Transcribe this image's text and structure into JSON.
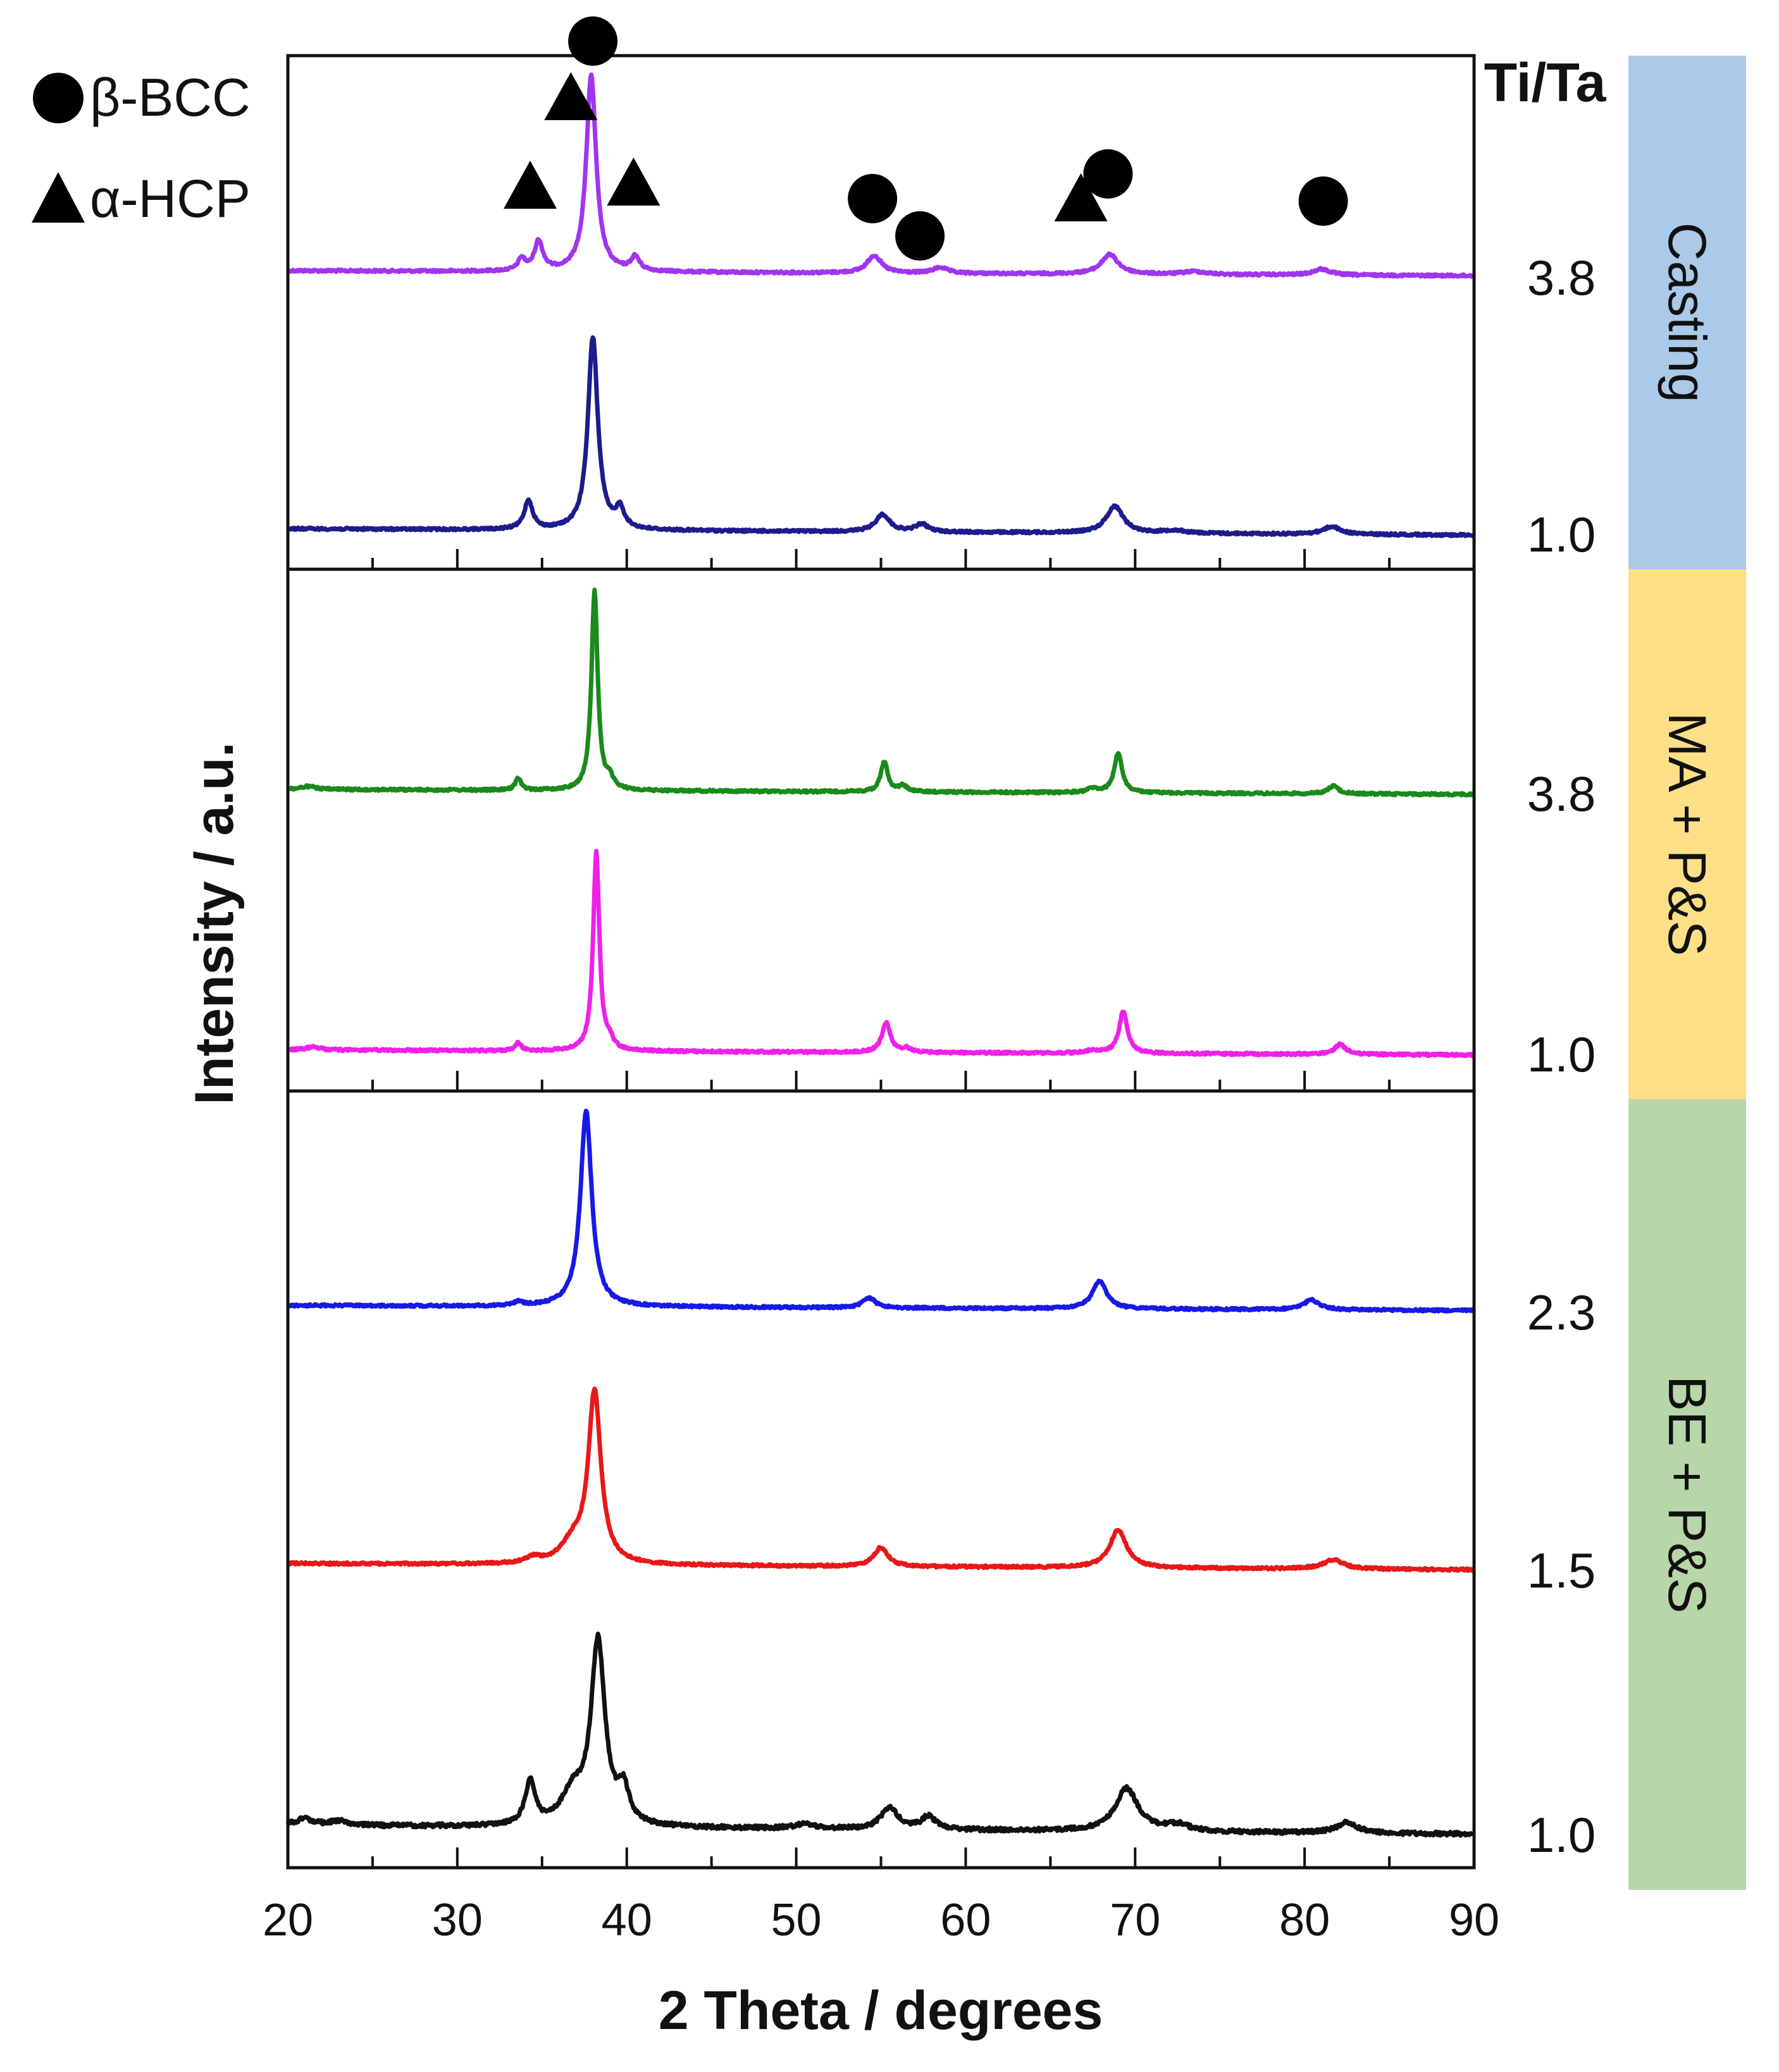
{
  "chart_data": {
    "type": "line",
    "title": "",
    "xlabel": "2 Theta / degrees",
    "ylabel": "Intensity / a.u.",
    "xlim": [
      20,
      90
    ],
    "xticks": [
      20,
      30,
      40,
      50,
      60,
      70,
      80,
      90
    ],
    "grid": false,
    "ratio_header": "Ti/Ta",
    "legend": [
      {
        "symbol": "circle",
        "label": "β-BCC"
      },
      {
        "symbol": "triangle",
        "label": "α-HCP"
      }
    ],
    "groups": [
      {
        "name": "Casting",
        "color": "#abc9e8"
      },
      {
        "name": "MA + P&S",
        "color": "#fddf87"
      },
      {
        "name": "BE + P&S",
        "color": "#b7d7a8"
      }
    ],
    "series": [
      {
        "name": "Casting Ti/Ta 3.8",
        "group": "Casting",
        "ratio": "3.8",
        "color": "#a035f0",
        "peaks": [
          {
            "x": 33.8,
            "h": 0.06,
            "w": 0.25
          },
          {
            "x": 34.8,
            "h": 0.15,
            "w": 0.3
          },
          {
            "x": 37.9,
            "h": 1.0,
            "w": 0.35
          },
          {
            "x": 40.5,
            "h": 0.07,
            "w": 0.3
          },
          {
            "x": 54.6,
            "h": 0.09,
            "w": 0.5
          },
          {
            "x": 58.5,
            "h": 0.03,
            "w": 0.5
          },
          {
            "x": 68.5,
            "h": 0.1,
            "w": 0.6
          },
          {
            "x": 73.5,
            "h": 0.015,
            "w": 0.8
          },
          {
            "x": 81.0,
            "h": 0.03,
            "w": 0.6
          }
        ]
      },
      {
        "name": "Casting Ti/Ta 1.0",
        "group": "Casting",
        "ratio": "1.0",
        "color": "#1c1c8c",
        "peaks": [
          {
            "x": 34.2,
            "h": 0.15,
            "w": 0.3
          },
          {
            "x": 38.0,
            "h": 1.0,
            "w": 0.35
          },
          {
            "x": 39.6,
            "h": 0.1,
            "w": 0.3
          },
          {
            "x": 55.1,
            "h": 0.09,
            "w": 0.5
          },
          {
            "x": 57.4,
            "h": 0.04,
            "w": 0.45
          },
          {
            "x": 68.8,
            "h": 0.14,
            "w": 0.6
          },
          {
            "x": 72.3,
            "h": 0.015,
            "w": 0.8
          },
          {
            "x": 81.6,
            "h": 0.04,
            "w": 0.6
          }
        ]
      },
      {
        "name": "MA + P&S Ti/Ta 3.8",
        "group": "MA + P&S",
        "ratio": "3.8",
        "color": "#1a8a1a",
        "peaks": [
          {
            "x": 21.2,
            "h": 0.015,
            "w": 0.5
          },
          {
            "x": 33.6,
            "h": 0.06,
            "w": 0.2
          },
          {
            "x": 38.1,
            "h": 1.0,
            "w": 0.22
          },
          {
            "x": 39.0,
            "h": 0.05,
            "w": 0.25
          },
          {
            "x": 55.2,
            "h": 0.15,
            "w": 0.25
          },
          {
            "x": 56.3,
            "h": 0.03,
            "w": 0.3
          },
          {
            "x": 67.5,
            "h": 0.02,
            "w": 0.4
          },
          {
            "x": 69.0,
            "h": 0.2,
            "w": 0.28
          },
          {
            "x": 81.7,
            "h": 0.04,
            "w": 0.35
          }
        ]
      },
      {
        "name": "MA + P&S Ti/Ta 1.0",
        "group": "MA + P&S",
        "ratio": "1.0",
        "color": "#f020e8",
        "peaks": [
          {
            "x": 21.5,
            "h": 0.015,
            "w": 0.5
          },
          {
            "x": 33.6,
            "h": 0.04,
            "w": 0.2
          },
          {
            "x": 38.2,
            "h": 1.0,
            "w": 0.22
          },
          {
            "x": 39.0,
            "h": 0.04,
            "w": 0.25
          },
          {
            "x": 55.3,
            "h": 0.15,
            "w": 0.3
          },
          {
            "x": 56.5,
            "h": 0.02,
            "w": 0.3
          },
          {
            "x": 67.5,
            "h": 0.015,
            "w": 0.4
          },
          {
            "x": 69.3,
            "h": 0.21,
            "w": 0.3
          },
          {
            "x": 82.1,
            "h": 0.05,
            "w": 0.4
          }
        ]
      },
      {
        "name": "BE + P&S Ti/Ta 2.3",
        "group": "BE + P&S",
        "ratio": "2.3",
        "color": "#1919e6",
        "peaks": [
          {
            "x": 33.6,
            "h": 0.02,
            "w": 0.3
          },
          {
            "x": 37.6,
            "h": 1.0,
            "w": 0.4
          },
          {
            "x": 54.3,
            "h": 0.05,
            "w": 0.45
          },
          {
            "x": 67.9,
            "h": 0.14,
            "w": 0.5
          },
          {
            "x": 80.4,
            "h": 0.05,
            "w": 0.55
          }
        ]
      },
      {
        "name": "BE + P&S Ti/Ta 1.5",
        "group": "BE + P&S",
        "ratio": "1.5",
        "color": "#e81818",
        "peaks": [
          {
            "x": 34.5,
            "h": 0.03,
            "w": 0.5
          },
          {
            "x": 36.8,
            "h": 0.1,
            "w": 0.8
          },
          {
            "x": 38.1,
            "h": 0.9,
            "w": 0.45
          },
          {
            "x": 55.0,
            "h": 0.1,
            "w": 0.5
          },
          {
            "x": 69.0,
            "h": 0.2,
            "w": 0.6
          },
          {
            "x": 81.7,
            "h": 0.05,
            "w": 0.7
          }
        ]
      },
      {
        "name": "BE + P&S Ti/Ta 1.0",
        "group": "BE + P&S",
        "ratio": "1.0",
        "color": "#111111",
        "peaks": [
          {
            "x": 21.0,
            "h": 0.03,
            "w": 0.6
          },
          {
            "x": 23.0,
            "h": 0.02,
            "w": 0.6
          },
          {
            "x": 34.3,
            "h": 0.2,
            "w": 0.35
          },
          {
            "x": 36.8,
            "h": 0.14,
            "w": 0.8
          },
          {
            "x": 38.3,
            "h": 0.85,
            "w": 0.5
          },
          {
            "x": 39.8,
            "h": 0.15,
            "w": 0.4
          },
          {
            "x": 50.5,
            "h": 0.02,
            "w": 0.8
          },
          {
            "x": 55.5,
            "h": 0.1,
            "w": 0.6
          },
          {
            "x": 57.8,
            "h": 0.06,
            "w": 0.5
          },
          {
            "x": 69.5,
            "h": 0.2,
            "w": 0.8
          },
          {
            "x": 72.5,
            "h": 0.03,
            "w": 0.8
          },
          {
            "x": 82.5,
            "h": 0.05,
            "w": 0.7
          }
        ]
      }
    ],
    "annotations": [
      {
        "symbol": "circle",
        "x": 38.0
      },
      {
        "symbol": "triangle",
        "x": 36.7
      },
      {
        "symbol": "triangle",
        "x": 34.3
      },
      {
        "symbol": "triangle",
        "x": 40.4
      },
      {
        "symbol": "circle",
        "x": 54.5
      },
      {
        "symbol": "circle",
        "x": 57.3
      },
      {
        "symbol": "circle",
        "x": 68.4
      },
      {
        "symbol": "triangle",
        "x": 66.8
      },
      {
        "symbol": "circle",
        "x": 81.1
      }
    ]
  }
}
